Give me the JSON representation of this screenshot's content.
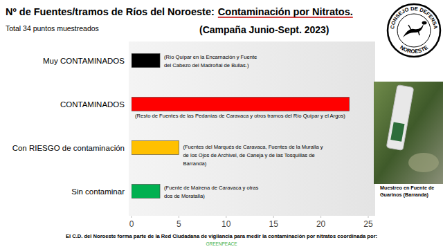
{
  "chart_data": {
    "type": "bar",
    "orientation": "horizontal",
    "title": [
      "Nº de Fuentes/tramos de Ríos del Noroeste:",
      "Contaminación por Nitratos."
    ],
    "subtitle": "(Campaña Junio-Sept. 2023)",
    "categories": [
      "Muy CONTAMINADOS",
      "CONTAMINADOS",
      "Con RIESGO de contaminación",
      "Sin contaminar"
    ],
    "values": [
      3,
      23,
      5,
      3
    ],
    "colors": [
      "#000000",
      "#ff0000",
      "#ffc000",
      "#00b050"
    ],
    "xlim": [
      0,
      25
    ],
    "xticks": [
      0,
      5,
      10,
      15,
      20,
      25
    ],
    "grid": false,
    "annotations": [
      [
        "(Río Quípar en la Encarnación y Fuente",
        "del Cabezo del Madroñal de Bullas.)"
      ],
      [
        "(Resto de Fuentes de las Pedanías de Caravaca y otros tramos del Río Quípar y el Argos)"
      ],
      [
        "(Fuentes del Marqués de Caravaca, Fuentes de la Muralla y",
        "de los Ojos de Archivel, de Caneja y de las Tosquillas de",
        "Barranda)"
      ],
      [
        "(Fuente de Mairena de Caravaca y otras",
        "dos de Moratalla)"
      ]
    ]
  },
  "page": {
    "total_note": "Total 34 puntos muestreados",
    "logo_top": "CONSEJO DE DEFENSA",
    "logo_bottom": "NOROESTE",
    "photo_caption": [
      "Muestreo en Fuente de",
      "Guarinos (Barranda)"
    ],
    "footer": "El C.D. del Noroeste forma parte de la Red Ciudadana de vigilancia para medir la contaminación por nitratos coordinada por:",
    "footer_org": "GREENPEACE"
  }
}
